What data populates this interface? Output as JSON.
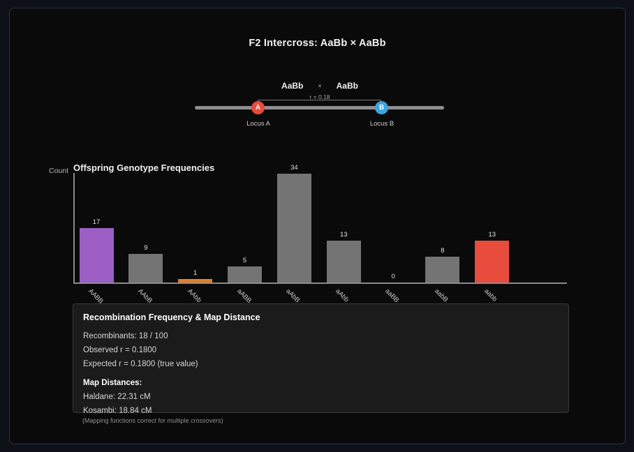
{
  "window": {
    "title": "F2 Intercross: AaBb × AaBb"
  },
  "cross_diagram": {
    "parent1": "AaBb",
    "cross_symbol": "×",
    "parent2": "AaBb",
    "r_label": "r = 0.18",
    "locus_a": {
      "letter": "A",
      "label": "Locus A",
      "color": "#e74c3c"
    },
    "locus_b": {
      "letter": "B",
      "label": "Locus B",
      "color": "#3ba3e0"
    }
  },
  "chart_data": {
    "type": "bar",
    "title": "Offspring Genotype Frequencies",
    "xlabel": "",
    "ylabel": "Count",
    "categories": [
      "AABB",
      "AAbB",
      "AAbb",
      "aABB",
      "aAbB",
      "aAbb",
      "aaBB",
      "aabB",
      "aabb"
    ],
    "values": [
      17,
      9,
      1,
      5,
      34,
      13,
      0,
      8,
      13
    ],
    "bar_colors": [
      "#9c5fc6",
      "#747474",
      "#e67e22",
      "#747474",
      "#747474",
      "#747474",
      "#747474",
      "#747474",
      "#e74c3c"
    ],
    "ylim": [
      0,
      36
    ],
    "grid": false,
    "value_labels_shown": true,
    "legend": "none"
  },
  "info_panel": {
    "title": "Recombination Frequency & Map Distance",
    "lines": [
      "Recombinants: 18 / 100",
      "Observed r = 0.1800",
      "Expected r = 0.1800 (true value)"
    ],
    "map_distances_title": "Map Distances:",
    "map_lines": [
      "Haldane: 22.31 cM",
      "Kosambi: 18.84 cM"
    ],
    "footnote": "(Mapping functions correct for multiple crossovers)"
  },
  "colors": {
    "outer_background": "#0d1017",
    "panel_background": "#0a0a0b",
    "panel_border": "#28334a",
    "info_panel_background": "#1b1b1c",
    "axis": "#8a8a8a",
    "chromosome": "#8f8f8f",
    "locus_a": "#e74c3c",
    "locus_b": "#3ba3e0"
  }
}
